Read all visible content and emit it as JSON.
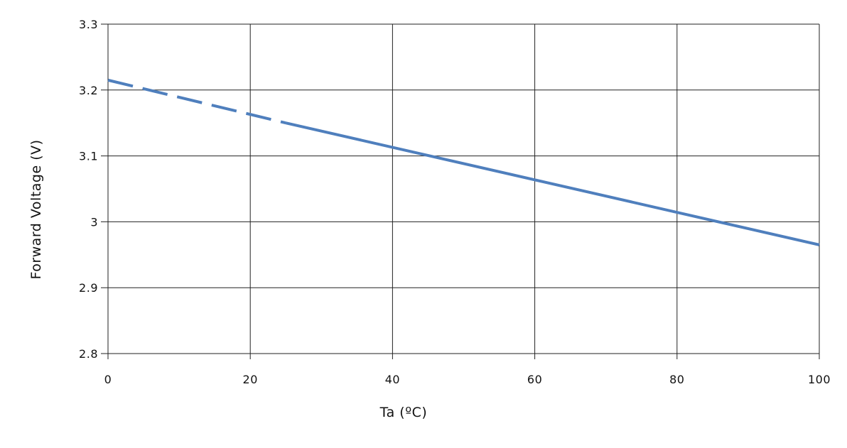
{
  "chart_data": {
    "type": "line",
    "xlabel": "Ta (ºC)",
    "ylabel": "Forward Voltage (V)",
    "xlim": [
      0,
      100
    ],
    "ylim": [
      2.8,
      3.3
    ],
    "x_ticks": [
      "0",
      "20",
      "40",
      "60",
      "80",
      "100"
    ],
    "y_ticks": [
      "2.8",
      "2.9",
      "3",
      "3.1",
      "3.2",
      "3.3"
    ],
    "grid": true,
    "series_color": "#4f7fbd",
    "series": [
      {
        "style": "dashed",
        "x": [
          0,
          25
        ],
        "y": [
          3.215,
          3.15
        ]
      },
      {
        "style": "solid",
        "x": [
          25,
          100
        ],
        "y": [
          3.15,
          2.965
        ]
      }
    ]
  }
}
